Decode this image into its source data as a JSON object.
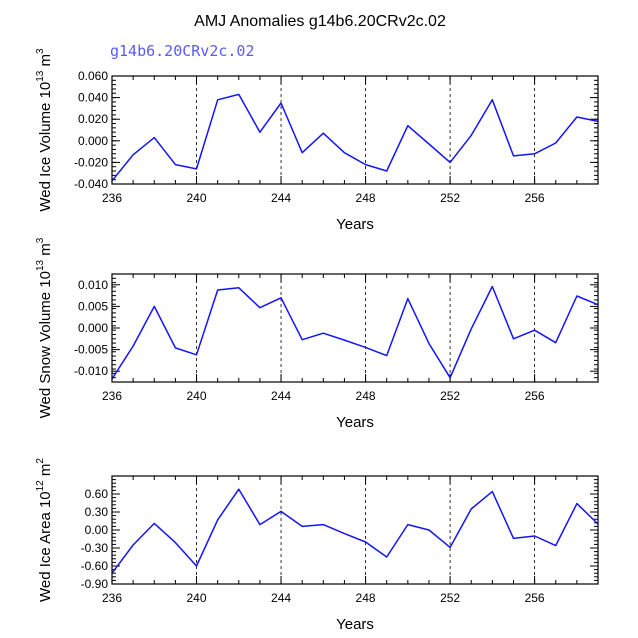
{
  "figure_title": "AMJ Anomalies g14b6.20CRv2c.02",
  "subtitle": "g14b6.20CRv2c.02",
  "colors": {
    "line": "#1414ff",
    "axis": "#000000",
    "subtitle": "#5a5aff"
  },
  "chart_data": [
    {
      "type": "line",
      "name": "Wed Ice Volume",
      "xlabel": "Years",
      "ylabel": {
        "main": "Wed Ice Volume 10",
        "exp": "13",
        "unit": " m",
        "unit_exp": "3"
      },
      "xlim": [
        236,
        259
      ],
      "ylim": [
        -0.04,
        0.06
      ],
      "xticks": [
        236,
        240,
        244,
        248,
        252,
        256
      ],
      "xtick_labels": [
        "236",
        "240",
        "244",
        "248",
        "252",
        "256"
      ],
      "yticks": [
        -0.04,
        -0.02,
        0.0,
        0.02,
        0.04,
        0.06
      ],
      "ytick_labels": [
        "-0.040",
        "-0.020",
        "0.000",
        "0.020",
        "0.040",
        "0.060"
      ],
      "vlines": [
        240,
        244,
        248,
        252,
        256
      ],
      "x": [
        236,
        237,
        238,
        239,
        240,
        241,
        242,
        243,
        244,
        245,
        246,
        247,
        248,
        249,
        250,
        251,
        252,
        253,
        254,
        255,
        256,
        257,
        258,
        259
      ],
      "values": [
        -0.037,
        -0.013,
        0.003,
        -0.022,
        -0.026,
        0.038,
        0.043,
        0.008,
        0.035,
        -0.011,
        0.007,
        -0.011,
        -0.022,
        -0.028,
        0.014,
        -0.003,
        -0.02,
        0.005,
        0.038,
        -0.014,
        -0.012,
        -0.002,
        0.022,
        0.018
      ]
    },
    {
      "type": "line",
      "name": "Wed Snow Volume",
      "xlabel": "Years",
      "ylabel": {
        "main": "Wed Snow Volume 10",
        "exp": "13",
        "unit": " m",
        "unit_exp": "3"
      },
      "xlim": [
        236,
        259
      ],
      "ylim": [
        -0.0125,
        0.0125
      ],
      "xticks": [
        236,
        240,
        244,
        248,
        252,
        256
      ],
      "xtick_labels": [
        "236",
        "240",
        "244",
        "248",
        "252",
        "256"
      ],
      "yticks": [
        -0.01,
        -0.005,
        0.0,
        0.005,
        0.01
      ],
      "ytick_labels": [
        "-0.010",
        "-0.005",
        "0.000",
        "0.005",
        "0.010"
      ],
      "vlines": [
        240,
        244,
        248,
        252,
        256
      ],
      "x": [
        236,
        237,
        238,
        239,
        240,
        241,
        242,
        243,
        244,
        245,
        246,
        247,
        248,
        249,
        250,
        251,
        252,
        253,
        254,
        255,
        256,
        257,
        258,
        259
      ],
      "values": [
        -0.0118,
        -0.0042,
        0.005,
        -0.0046,
        -0.0062,
        0.0088,
        0.0093,
        0.0047,
        0.007,
        -0.0027,
        -0.0012,
        -0.0028,
        -0.0045,
        -0.0064,
        0.0068,
        -0.0036,
        -0.0115,
        -0.0002,
        0.0096,
        -0.0025,
        -0.0005,
        -0.0034,
        0.0074,
        0.0054
      ]
    },
    {
      "type": "line",
      "name": "Wed Ice Area",
      "xlabel": "Years",
      "ylabel": {
        "main": "Wed Ice Area 10",
        "exp": "12",
        "unit": " m",
        "unit_exp": "2"
      },
      "xlim": [
        236,
        259
      ],
      "ylim": [
        -0.9,
        0.9
      ],
      "xticks": [
        236,
        240,
        244,
        248,
        252,
        256
      ],
      "xtick_labels": [
        "236",
        "240",
        "244",
        "248",
        "252",
        "256"
      ],
      "yticks": [
        -0.9,
        -0.6,
        -0.3,
        0.0,
        0.3,
        0.6
      ],
      "ytick_labels": [
        "-0.90",
        "-0.60",
        "-0.30",
        "0.00",
        "0.30",
        "0.60"
      ],
      "vlines": [
        240,
        244,
        248,
        252,
        256
      ],
      "x": [
        236,
        237,
        238,
        239,
        240,
        241,
        242,
        243,
        244,
        245,
        246,
        247,
        248,
        249,
        250,
        251,
        252,
        253,
        254,
        255,
        256,
        257,
        258,
        259
      ],
      "values": [
        -0.72,
        -0.25,
        0.11,
        -0.21,
        -0.6,
        0.17,
        0.68,
        0.09,
        0.31,
        0.06,
        0.09,
        -0.06,
        -0.2,
        -0.45,
        0.09,
        0.0,
        -0.29,
        0.35,
        0.64,
        -0.14,
        -0.1,
        -0.26,
        0.44,
        0.1
      ]
    }
  ]
}
